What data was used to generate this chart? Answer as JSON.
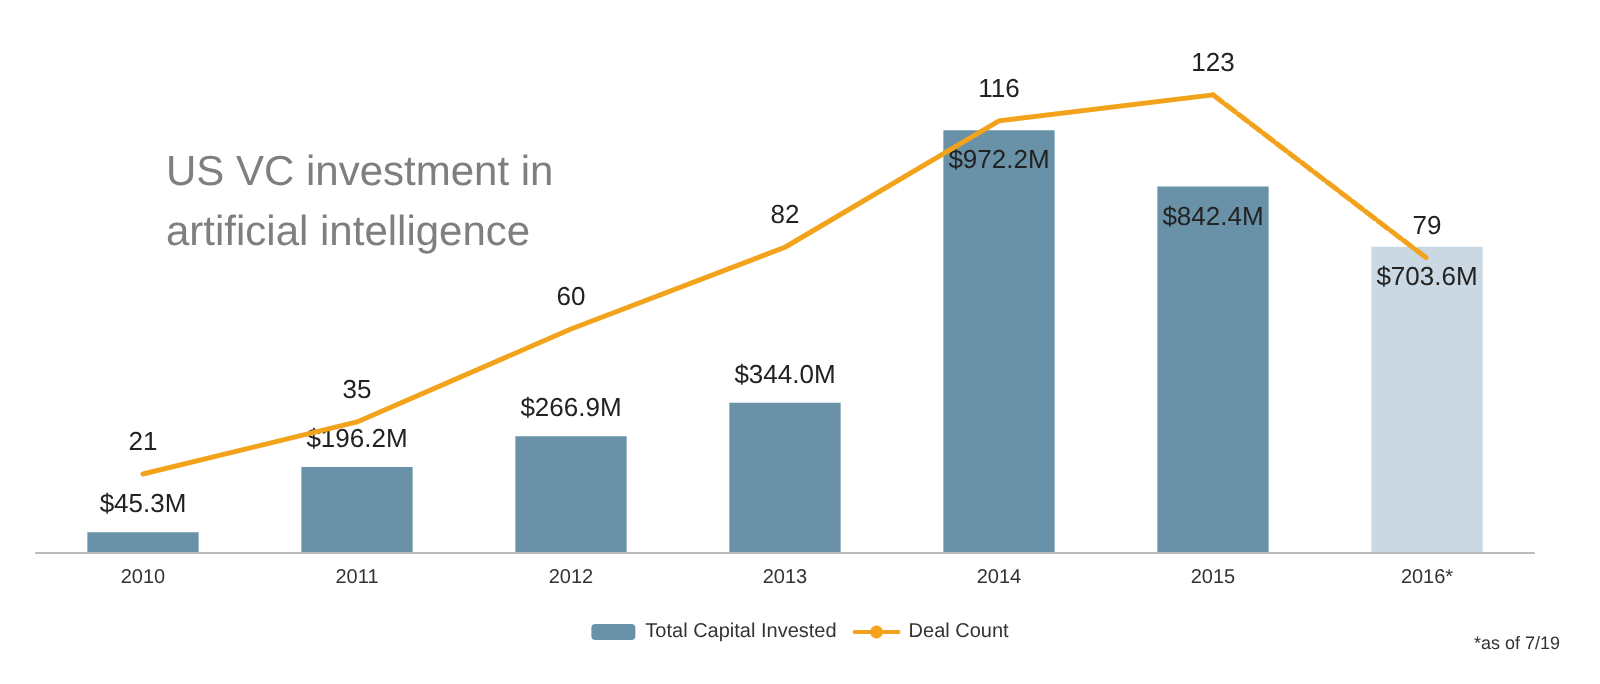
{
  "chart_data": {
    "type": "bar",
    "title": "US VC investment in artificial intelligence",
    "categories": [
      "2010",
      "2011",
      "2012",
      "2013",
      "2014",
      "2015",
      "2016*"
    ],
    "series": [
      {
        "name": "Total Capital Invested",
        "color": "#6991a7",
        "colors": [
          "#6991a7",
          "#6991a7",
          "#6991a7",
          "#6991a7",
          "#6991a7",
          "#6991a7",
          "#c9d8e2"
        ],
        "values": [
          45.3,
          196.2,
          266.9,
          344.0,
          972.2,
          842.4,
          703.6
        ],
        "value_labels": [
          "$45.3M",
          "$196.2M",
          "$266.9M",
          "$344.0M",
          "$972.2M",
          "$842.4M",
          "$703.6M"
        ]
      },
      {
        "name": "Deal Count",
        "type": "line",
        "axis": "y2",
        "color": "#f2a31b",
        "line_style": "solid",
        "values": [
          21,
          35,
          60,
          82,
          116,
          123,
          null
        ],
        "value_labels": [
          "21",
          "35",
          "60",
          "82",
          "116",
          "123",
          null
        ]
      },
      {
        "type": "line",
        "axis": "y2",
        "color": "#f2a31b",
        "line_style": "dashed",
        "values": [
          null,
          null,
          null,
          null,
          null,
          123,
          79
        ],
        "value_labels": [
          null,
          null,
          null,
          null,
          null,
          null,
          "79"
        ]
      }
    ],
    "legend": "bottom",
    "grid": false,
    "marker": "none",
    "annotations": [
      "*as of 7/19"
    ]
  }
}
